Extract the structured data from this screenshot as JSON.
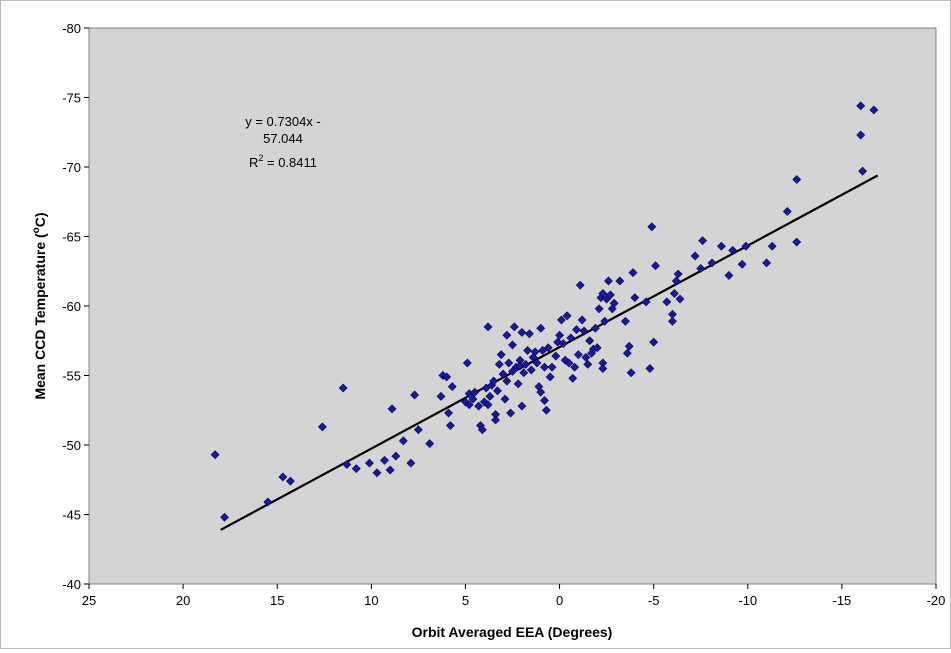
{
  "chart_data": {
    "type": "scatter",
    "title": "",
    "xlabel": "Orbit Averaged EEA (Degrees)",
    "ylabel_main": "Mean CCD Temperature (",
    "ylabel_sup": "o",
    "ylabel_end": "C)",
    "xlim": [
      25,
      -20
    ],
    "ylim": [
      -40,
      -80
    ],
    "x_reversed": true,
    "y_reversed": true,
    "grid": false,
    "plot_background": "#d4d4d4",
    "marker_color": "#1a1a99",
    "marker_edge": "#000066",
    "x_ticks": [
      "25",
      "20",
      "15",
      "10",
      "5",
      "0",
      "-5",
      "-10",
      "-15",
      "-20"
    ],
    "y_ticks": [
      "-40",
      "-45",
      "-50",
      "-55",
      "-60",
      "-65",
      "-70",
      "-75",
      "-80"
    ],
    "x_tick_values": [
      25,
      20,
      15,
      10,
      5,
      0,
      -5,
      -10,
      -15,
      -20
    ],
    "y_tick_values": [
      -40,
      -45,
      -50,
      -55,
      -60,
      -65,
      -70,
      -75,
      -80
    ],
    "trendline": {
      "slope": 0.7304,
      "intercept": -57.044,
      "x_range": [
        18,
        -16.9
      ],
      "color": "#000000",
      "equation_line1": "y = 0.7304x -",
      "equation_line2": "57.044",
      "r2_prefix": "R",
      "r2_sup": "2",
      "r2_suffix": " = 0.8411"
    },
    "points": [
      {
        "x": 18.3,
        "y": -49.3
      },
      {
        "x": 17.8,
        "y": -44.8
      },
      {
        "x": 15.5,
        "y": -45.9
      },
      {
        "x": 14.7,
        "y": -47.7
      },
      {
        "x": 14.3,
        "y": -47.4
      },
      {
        "x": 12.6,
        "y": -51.3
      },
      {
        "x": 11.5,
        "y": -54.1
      },
      {
        "x": 11.3,
        "y": -48.6
      },
      {
        "x": 10.8,
        "y": -48.3
      },
      {
        "x": 10.1,
        "y": -48.7
      },
      {
        "x": 9.7,
        "y": -48.0
      },
      {
        "x": 9.3,
        "y": -48.9
      },
      {
        "x": 9.0,
        "y": -48.2
      },
      {
        "x": 8.9,
        "y": -52.6
      },
      {
        "x": 8.7,
        "y": -49.2
      },
      {
        "x": 8.3,
        "y": -50.3
      },
      {
        "x": 7.9,
        "y": -48.7
      },
      {
        "x": 7.7,
        "y": -53.6
      },
      {
        "x": 7.5,
        "y": -51.1
      },
      {
        "x": 6.9,
        "y": -50.1
      },
      {
        "x": 6.3,
        "y": -53.5
      },
      {
        "x": 6.2,
        "y": -55.0
      },
      {
        "x": 6.0,
        "y": -54.9
      },
      {
        "x": 5.9,
        "y": -52.3
      },
      {
        "x": 5.8,
        "y": -51.4
      },
      {
        "x": 5.7,
        "y": -54.2
      },
      {
        "x": 5.0,
        "y": -53.1
      },
      {
        "x": 4.9,
        "y": -55.9
      },
      {
        "x": 4.8,
        "y": -53.7
      },
      {
        "x": 4.8,
        "y": -52.9
      },
      {
        "x": 4.6,
        "y": -53.3
      },
      {
        "x": 4.5,
        "y": -53.8
      },
      {
        "x": 4.3,
        "y": -52.8
      },
      {
        "x": 4.2,
        "y": -51.4
      },
      {
        "x": 4.1,
        "y": -51.1
      },
      {
        "x": 4.0,
        "y": -53.1
      },
      {
        "x": 3.9,
        "y": -54.1
      },
      {
        "x": 3.8,
        "y": -52.9
      },
      {
        "x": 3.8,
        "y": -58.5
      },
      {
        "x": 3.7,
        "y": -53.5
      },
      {
        "x": 3.6,
        "y": -54.3
      },
      {
        "x": 3.5,
        "y": -54.6
      },
      {
        "x": 3.4,
        "y": -52.2
      },
      {
        "x": 3.4,
        "y": -51.8
      },
      {
        "x": 3.3,
        "y": -53.9
      },
      {
        "x": 3.2,
        "y": -55.8
      },
      {
        "x": 3.1,
        "y": -56.5
      },
      {
        "x": 3.0,
        "y": -55.1
      },
      {
        "x": 2.9,
        "y": -53.3
      },
      {
        "x": 2.8,
        "y": -54.6
      },
      {
        "x": 2.8,
        "y": -57.9
      },
      {
        "x": 2.7,
        "y": -55.9
      },
      {
        "x": 2.6,
        "y": -52.3
      },
      {
        "x": 2.5,
        "y": -55.3
      },
      {
        "x": 2.5,
        "y": -57.2
      },
      {
        "x": 2.4,
        "y": -58.5
      },
      {
        "x": 2.3,
        "y": -55.6
      },
      {
        "x": 2.2,
        "y": -54.4
      },
      {
        "x": 2.1,
        "y": -56.1
      },
      {
        "x": 2.1,
        "y": -55.7
      },
      {
        "x": 2.0,
        "y": -52.8
      },
      {
        "x": 2.0,
        "y": -58.1
      },
      {
        "x": 1.9,
        "y": -55.2
      },
      {
        "x": 1.8,
        "y": -55.8
      },
      {
        "x": 1.7,
        "y": -56.8
      },
      {
        "x": 1.6,
        "y": -58.0
      },
      {
        "x": 1.5,
        "y": -55.4
      },
      {
        "x": 1.4,
        "y": -56.3
      },
      {
        "x": 1.3,
        "y": -56.7
      },
      {
        "x": 1.2,
        "y": -55.9
      },
      {
        "x": 1.1,
        "y": -54.2
      },
      {
        "x": 1.0,
        "y": -53.8
      },
      {
        "x": 1.0,
        "y": -58.4
      },
      {
        "x": 0.9,
        "y": -56.8
      },
      {
        "x": 0.8,
        "y": -55.6
      },
      {
        "x": 0.8,
        "y": -53.2
      },
      {
        "x": 0.7,
        "y": -52.5
      },
      {
        "x": 0.6,
        "y": -57.0
      },
      {
        "x": 0.5,
        "y": -54.9
      },
      {
        "x": 0.4,
        "y": -55.6
      },
      {
        "x": 0.2,
        "y": -56.4
      },
      {
        "x": 0.1,
        "y": -57.4
      },
      {
        "x": 0.0,
        "y": -57.9
      },
      {
        "x": -0.1,
        "y": -59.0
      },
      {
        "x": -0.2,
        "y": -57.3
      },
      {
        "x": -0.3,
        "y": -56.1
      },
      {
        "x": -0.4,
        "y": -59.3
      },
      {
        "x": -0.5,
        "y": -55.9
      },
      {
        "x": -0.6,
        "y": -57.7
      },
      {
        "x": -0.7,
        "y": -54.8
      },
      {
        "x": -0.8,
        "y": -55.6
      },
      {
        "x": -0.9,
        "y": -58.3
      },
      {
        "x": -1.0,
        "y": -56.5
      },
      {
        "x": -1.1,
        "y": -61.5
      },
      {
        "x": -1.2,
        "y": -59.0
      },
      {
        "x": -1.3,
        "y": -58.2
      },
      {
        "x": -1.4,
        "y": -56.3
      },
      {
        "x": -1.5,
        "y": -55.8
      },
      {
        "x": -1.6,
        "y": -57.5
      },
      {
        "x": -1.7,
        "y": -56.6
      },
      {
        "x": -1.8,
        "y": -56.9
      },
      {
        "x": -1.9,
        "y": -58.4
      },
      {
        "x": -2.0,
        "y": -57.0
      },
      {
        "x": -2.1,
        "y": -59.8
      },
      {
        "x": -2.2,
        "y": -60.6
      },
      {
        "x": -2.3,
        "y": -60.9
      },
      {
        "x": -2.3,
        "y": -55.9
      },
      {
        "x": -2.3,
        "y": -55.5
      },
      {
        "x": -2.4,
        "y": -58.9
      },
      {
        "x": -2.5,
        "y": -60.5
      },
      {
        "x": -2.6,
        "y": -61.8
      },
      {
        "x": -2.7,
        "y": -60.8
      },
      {
        "x": -2.8,
        "y": -59.8
      },
      {
        "x": -2.9,
        "y": -60.2
      },
      {
        "x": -3.2,
        "y": -61.8
      },
      {
        "x": -3.5,
        "y": -58.9
      },
      {
        "x": -3.6,
        "y": -56.6
      },
      {
        "x": -3.7,
        "y": -57.1
      },
      {
        "x": -3.8,
        "y": -55.2
      },
      {
        "x": -3.9,
        "y": -62.4
      },
      {
        "x": -4.0,
        "y": -60.6
      },
      {
        "x": -4.6,
        "y": -60.3
      },
      {
        "x": -4.8,
        "y": -55.5
      },
      {
        "x": -4.9,
        "y": -65.7
      },
      {
        "x": -5.0,
        "y": -57.4
      },
      {
        "x": -5.1,
        "y": -62.9
      },
      {
        "x": -5.7,
        "y": -60.3
      },
      {
        "x": -6.0,
        "y": -59.4
      },
      {
        "x": -6.0,
        "y": -58.9
      },
      {
        "x": -6.2,
        "y": -61.8
      },
      {
        "x": -6.3,
        "y": -62.3
      },
      {
        "x": -6.4,
        "y": -60.5
      },
      {
        "x": -6.1,
        "y": -60.9
      },
      {
        "x": -7.2,
        "y": -63.6
      },
      {
        "x": -7.5,
        "y": -62.7
      },
      {
        "x": -7.6,
        "y": -64.7
      },
      {
        "x": -8.1,
        "y": -63.1
      },
      {
        "x": -8.6,
        "y": -64.3
      },
      {
        "x": -9.0,
        "y": -62.2
      },
      {
        "x": -9.2,
        "y": -64.0
      },
      {
        "x": -9.7,
        "y": -63.0
      },
      {
        "x": -9.9,
        "y": -64.3
      },
      {
        "x": -11.0,
        "y": -63.1
      },
      {
        "x": -11.3,
        "y": -64.3
      },
      {
        "x": -12.1,
        "y": -66.8
      },
      {
        "x": -12.6,
        "y": -69.1
      },
      {
        "x": -12.6,
        "y": -64.6
      },
      {
        "x": -16.0,
        "y": -74.4
      },
      {
        "x": -16.0,
        "y": -72.3
      },
      {
        "x": -16.1,
        "y": -69.7
      },
      {
        "x": -16.7,
        "y": -74.1
      }
    ]
  }
}
